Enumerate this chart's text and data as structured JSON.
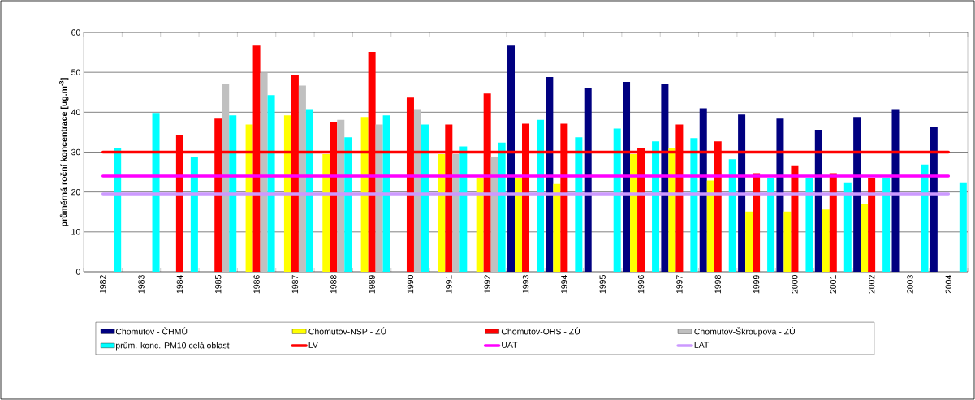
{
  "chart_data": {
    "type": "bar",
    "ylabel": "**průměrná roční koncentrace [ug.m$^{-3}$]**",
    "categories": [
      "1982",
      "1983",
      "1984",
      "1985",
      "1986",
      "1987",
      "1988",
      "1989",
      "1990",
      "1991",
      "1992",
      "1993",
      "1994",
      "1995",
      "1996",
      "1997",
      "1998",
      "1999",
      "2000",
      "2001",
      "2002",
      "2003",
      "2004"
    ],
    "series": [
      {
        "name": "Chomutov - ČHMÚ",
        "color": "#000080",
        "values": [
          null,
          null,
          null,
          null,
          null,
          null,
          null,
          null,
          null,
          null,
          null,
          56.7,
          48.8,
          46.1,
          47.6,
          47.2,
          41.0,
          39.4,
          38.4,
          35.6,
          38.8,
          40.8,
          36.4
        ]
      },
      {
        "name": "Chomutov-NSP - ZÚ",
        "color": "#ffff00",
        "values": [
          null,
          null,
          null,
          null,
          36.9,
          39.2,
          29.5,
          38.8,
          null,
          29.5,
          23.5,
          23.5,
          22.0,
          null,
          29.5,
          31.0,
          22.9,
          15.1,
          15.1,
          15.6,
          17.0,
          null,
          null
        ]
      },
      {
        "name": "Chomutov-OHS - ZÚ",
        "color": "#ff0000",
        "values": [
          null,
          null,
          34.3,
          38.4,
          56.7,
          49.4,
          37.6,
          55.1,
          43.7,
          36.9,
          44.7,
          37.1,
          37.1,
          null,
          31.0,
          36.9,
          32.7,
          24.7,
          26.7,
          24.7,
          23.5,
          null,
          null
        ]
      },
      {
        "name": "Chomutov-Škroupova - ZÚ",
        "color": "#c0c0c0",
        "values": [
          null,
          null,
          null,
          47.1,
          49.9,
          46.7,
          38.1,
          36.9,
          40.8,
          29.5,
          28.8,
          null,
          null,
          null,
          null,
          null,
          null,
          null,
          null,
          null,
          null,
          null,
          null
        ]
      },
      {
        "name": "prům. konc. PM10 celá oblast",
        "color": "#00ffff",
        "values": [
          31.0,
          39.8,
          28.8,
          39.2,
          44.3,
          40.8,
          33.7,
          39.2,
          36.9,
          31.4,
          32.4,
          38.1,
          33.7,
          35.9,
          32.7,
          33.5,
          28.2,
          23.5,
          23.5,
          22.4,
          23.5,
          26.9,
          22.4
        ]
      },
      {
        "name": "LV",
        "type": "line",
        "color": "#ff0000",
        "values": [
          30,
          30,
          30,
          30,
          30,
          30,
          30,
          30,
          30,
          30,
          30,
          30,
          30,
          30,
          30,
          30,
          30,
          30,
          30,
          30,
          30,
          30,
          30
        ]
      },
      {
        "name": "UAT",
        "type": "line",
        "color": "#ff00ff",
        "values": [
          24,
          24,
          24,
          24,
          24,
          24,
          24,
          24,
          24,
          24,
          24,
          24,
          24,
          24,
          24,
          24,
          24,
          24,
          24,
          24,
          24,
          24,
          24
        ]
      },
      {
        "name": "LAT",
        "type": "line",
        "color": "#cc99ff",
        "values": [
          19.5,
          19.5,
          19.5,
          19.5,
          19.5,
          19.5,
          19.5,
          19.5,
          19.5,
          19.5,
          19.5,
          19.5,
          19.5,
          19.5,
          19.5,
          19.5,
          19.5,
          19.5,
          19.5,
          19.5,
          19.5,
          19.5,
          19.5
        ]
      }
    ],
    "ylim": [
      0,
      60
    ],
    "yticks": [
      0,
      10,
      20,
      30,
      40,
      50,
      60
    ],
    "grid": "y",
    "legend": "bottom"
  }
}
